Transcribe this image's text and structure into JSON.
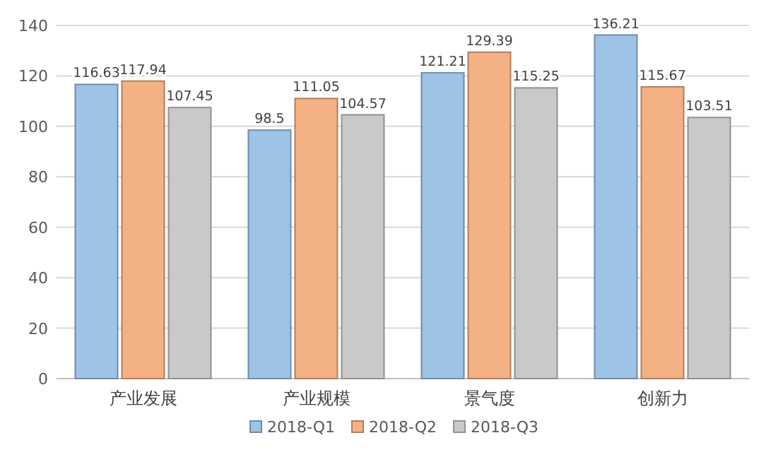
{
  "chart_data": {
    "type": "bar",
    "categories": [
      "产业发展",
      "产业规模",
      "景气度",
      "创新力"
    ],
    "series": [
      {
        "name": "2018-Q1",
        "color": "#9dc3e6",
        "values": [
          116.63,
          98.5,
          121.21,
          136.21
        ]
      },
      {
        "name": "2018-Q2",
        "color": "#f4b183",
        "values": [
          117.94,
          111.05,
          129.39,
          115.67
        ]
      },
      {
        "name": "2018-Q3",
        "color": "#c9c9c9",
        "values": [
          107.45,
          104.57,
          115.25,
          103.51
        ]
      }
    ],
    "ylim": [
      0,
      140
    ],
    "yticks": [
      0,
      20,
      40,
      60,
      80,
      100,
      120,
      140
    ],
    "grid": "y",
    "legend": "bottom",
    "data_labels": true
  }
}
